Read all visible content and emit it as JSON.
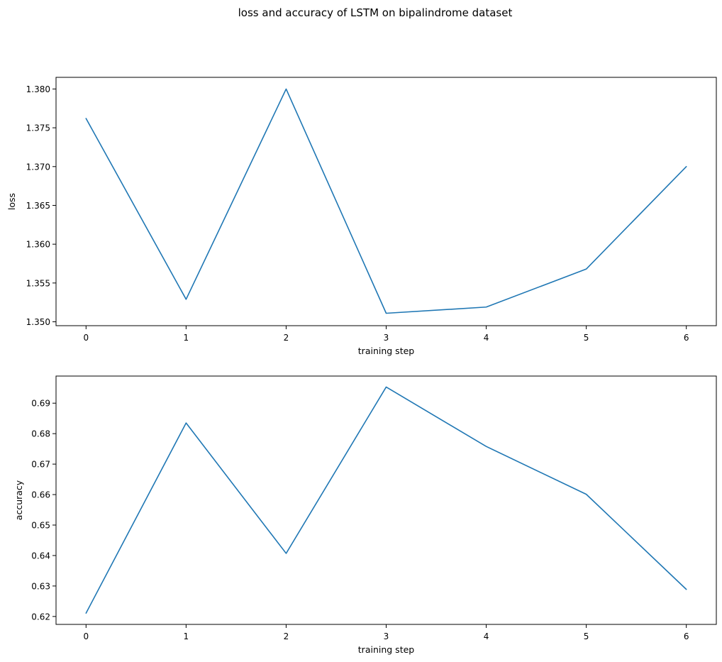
{
  "figure": {
    "title": "loss and accuracy of LSTM on bipalindrome dataset"
  },
  "chart_data": [
    {
      "type": "line",
      "title": "",
      "xlabel": "training step",
      "ylabel": "loss",
      "x": [
        0,
        1,
        2,
        3,
        4,
        5,
        6
      ],
      "xticks": [
        "0",
        "1",
        "2",
        "3",
        "4",
        "5",
        "6"
      ],
      "yticks": [
        "1.350",
        "1.355",
        "1.360",
        "1.365",
        "1.370",
        "1.375",
        "1.380"
      ],
      "ytick_values": [
        1.35,
        1.355,
        1.36,
        1.365,
        1.37,
        1.375,
        1.38
      ],
      "xlim": [
        -0.3,
        6.3
      ],
      "ylim": [
        1.3495,
        1.3815
      ],
      "grid": false,
      "series": [
        {
          "values": [
            1.3762,
            1.3529,
            1.38,
            1.3511,
            1.3519,
            1.3568,
            1.37
          ],
          "color": "#1f77b4"
        }
      ]
    },
    {
      "type": "line",
      "title": "",
      "xlabel": "training step",
      "ylabel": "accuracy",
      "x": [
        0,
        1,
        2,
        3,
        4,
        5,
        6
      ],
      "xticks": [
        "0",
        "1",
        "2",
        "3",
        "4",
        "5",
        "6"
      ],
      "yticks": [
        "0.62",
        "0.63",
        "0.64",
        "0.65",
        "0.66",
        "0.67",
        "0.68",
        "0.69"
      ],
      "ytick_values": [
        0.62,
        0.63,
        0.64,
        0.65,
        0.66,
        0.67,
        0.68,
        0.69
      ],
      "xlim": [
        -0.3,
        6.3
      ],
      "ylim": [
        0.6174,
        0.6989
      ],
      "grid": false,
      "series": [
        {
          "values": [
            0.6211,
            0.6835,
            0.6407,
            0.6953,
            0.6758,
            0.6601,
            0.6289
          ],
          "color": "#1f77b4"
        }
      ]
    }
  ]
}
